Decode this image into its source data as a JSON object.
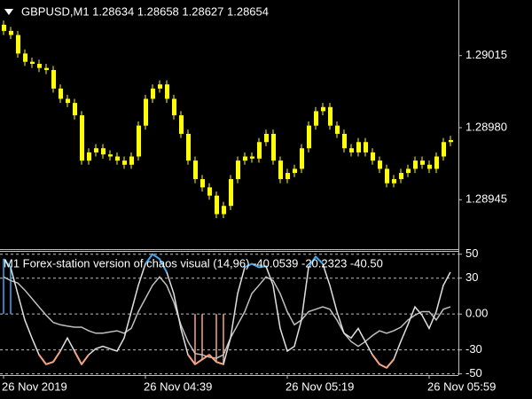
{
  "chart_data": [
    {
      "type": "candlestick",
      "title": "GBPUSD,M1  1.28634 1.28658 1.28627 1.28654",
      "categories": [
        "26 Nov 2019",
        null,
        null,
        null,
        null,
        null,
        null,
        null,
        null,
        null,
        null,
        null,
        null,
        null,
        null,
        null,
        null,
        null,
        null,
        null,
        "26 Nov 04:39",
        null,
        null,
        null,
        null,
        null,
        null,
        null,
        null,
        null,
        null,
        null,
        null,
        null,
        null,
        null,
        null,
        null,
        null,
        null,
        "26 Nov 05:19",
        null,
        null,
        null,
        null,
        null,
        null,
        null,
        null,
        null,
        null,
        null,
        null,
        null,
        null,
        null,
        null,
        null,
        null,
        null,
        "26 Nov 05:59",
        null,
        null,
        null
      ],
      "open": [
        1.2903,
        1.29027,
        1.29025,
        1.29016,
        1.29012,
        1.29011,
        1.29009,
        1.29008,
        1.28999,
        1.28994,
        1.28992,
        1.28986,
        1.28964,
        1.28968,
        1.2897,
        1.28967,
        1.28966,
        1.28964,
        1.28962,
        1.28966,
        1.28981,
        1.28994,
        1.28999,
        1.29001,
        1.28994,
        1.28986,
        1.28977,
        1.28964,
        1.28955,
        1.28951,
        1.28947,
        1.28938,
        1.28942,
        1.28955,
        1.28964,
        1.28966,
        1.28965,
        1.28973,
        1.28977,
        1.28964,
        1.28955,
        1.28958,
        1.2896,
        1.2897,
        1.28981,
        1.28988,
        1.2899,
        1.28981,
        1.28977,
        1.2897,
        1.28968,
        1.28973,
        1.28968,
        1.28964,
        1.2896,
        1.28953,
        1.28955,
        1.28958,
        1.2896,
        1.28964,
        1.28962,
        1.2896,
        1.28966,
        1.28973
      ],
      "high": [
        1.29032,
        1.29029,
        1.29027,
        1.29018,
        1.29014,
        1.29013,
        1.29011,
        1.2901,
        1.29001,
        1.28996,
        1.28994,
        1.28988,
        1.2897,
        1.28972,
        1.28972,
        1.28969,
        1.28968,
        1.28966,
        1.28968,
        1.28983,
        1.28996,
        1.29001,
        1.29003,
        1.29003,
        1.28996,
        1.28988,
        1.28979,
        1.28966,
        1.28957,
        1.28953,
        1.28949,
        1.28944,
        1.28957,
        1.28966,
        1.28968,
        1.28968,
        1.28975,
        1.28979,
        1.28979,
        1.28966,
        1.2896,
        1.28962,
        1.28972,
        1.28983,
        1.2899,
        1.28992,
        1.28992,
        1.28983,
        1.28979,
        1.28972,
        1.28975,
        1.28975,
        1.2897,
        1.28966,
        1.28962,
        1.28957,
        1.2896,
        1.28962,
        1.28966,
        1.28966,
        1.28964,
        1.28968,
        1.28975,
        1.28976
      ],
      "low": [
        1.29025,
        1.29023,
        1.29014,
        1.2901,
        1.29009,
        1.29007,
        1.29006,
        1.28997,
        1.28992,
        1.2899,
        1.28984,
        1.28962,
        1.28962,
        1.28966,
        1.28965,
        1.28964,
        1.28962,
        1.2896,
        1.2896,
        1.28964,
        1.28979,
        1.28992,
        1.28997,
        1.28992,
        1.28984,
        1.28975,
        1.28962,
        1.28953,
        1.28949,
        1.28945,
        1.28936,
        1.28936,
        1.2894,
        1.28953,
        1.28962,
        1.28963,
        1.28963,
        1.28971,
        1.28962,
        1.28953,
        1.28953,
        1.28956,
        1.28958,
        1.28968,
        1.28979,
        1.28986,
        1.28979,
        1.28975,
        1.28968,
        1.28966,
        1.28966,
        1.28966,
        1.28962,
        1.28958,
        1.28951,
        1.28951,
        1.28953,
        1.28956,
        1.28958,
        1.2896,
        1.28958,
        1.28958,
        1.28964,
        1.28971
      ],
      "close": [
        1.29027,
        1.29025,
        1.29016,
        1.29012,
        1.29011,
        1.29009,
        1.29008,
        1.28999,
        1.28994,
        1.28992,
        1.28986,
        1.28964,
        1.28968,
        1.2897,
        1.28967,
        1.28966,
        1.28964,
        1.28962,
        1.28966,
        1.28981,
        1.28994,
        1.28999,
        1.29001,
        1.28994,
        1.28986,
        1.28977,
        1.28964,
        1.28955,
        1.28951,
        1.28947,
        1.28938,
        1.28942,
        1.28955,
        1.28964,
        1.28966,
        1.28965,
        1.28973,
        1.28977,
        1.28964,
        1.28955,
        1.28958,
        1.2896,
        1.2897,
        1.28981,
        1.28988,
        1.2899,
        1.28981,
        1.28977,
        1.2897,
        1.28968,
        1.28973,
        1.28968,
        1.28964,
        1.2896,
        1.28953,
        1.28955,
        1.28958,
        1.2896,
        1.28964,
        1.28962,
        1.2896,
        1.28966,
        1.28973,
        1.28974
      ],
      "color": "#ffff00",
      "ylim": [
        1.28921,
        1.29042
      ],
      "yticks": [
        1.29015,
        {
          "value": 1.2898,
          "label": "1.28980"
        },
        1.28945
      ]
    },
    {
      "type": "line",
      "title": "M1 Forex-station version of chaos visual (14,96) -40.0539 -20.2323 -40.50",
      "series": [
        {
          "color": "#c0c0c0",
          "values": [
            31,
            28,
            26,
            20,
            13,
            6,
            -1,
            -7,
            -9,
            -10,
            -11,
            -11,
            -14,
            -16,
            -16,
            -15,
            -14,
            -16,
            -12,
            2,
            13,
            24,
            31,
            24,
            10,
            -9,
            -23,
            -33,
            -34,
            -36,
            -37,
            -34,
            -20,
            -9,
            2,
            17,
            24,
            31,
            28,
            17,
            2,
            -9,
            -5,
            2,
            4,
            6,
            4,
            -5,
            -16,
            -23,
            -27,
            -23,
            -18,
            -14,
            -16,
            -14,
            -11,
            -5,
            -1,
            2,
            2,
            -5,
            4,
            6
          ]
        },
        {
          "color": "#e0e0e0",
          "values": [
            46,
            39,
            17,
            -5,
            -20,
            -34,
            -42,
            -40,
            -31,
            -20,
            -31,
            -42,
            -34,
            -29,
            -27,
            -29,
            -31,
            -20,
            2,
            24,
            42,
            50,
            46,
            35,
            17,
            -12,
            -34,
            -42,
            -38,
            -34,
            -40,
            -42,
            -20,
            17,
            39,
            42,
            39,
            40,
            24,
            -12,
            -31,
            -27,
            -5,
            39,
            48,
            42,
            24,
            2,
            -16,
            -20,
            -12,
            -23,
            -34,
            -42,
            -45,
            -38,
            -23,
            -9,
            6,
            -1,
            -12,
            2,
            24,
            35
          ]
        }
      ],
      "histogram": [
        46,
        40,
        null,
        null,
        null,
        null,
        null,
        null,
        null,
        null,
        null,
        null,
        null,
        null,
        null,
        null,
        null,
        null,
        null,
        null,
        null,
        null,
        null,
        null,
        null,
        null,
        null,
        -42,
        -38,
        null,
        -40,
        -42,
        null,
        null,
        null,
        null,
        null,
        null,
        null,
        null,
        null,
        null,
        null,
        null,
        null,
        null,
        null,
        null,
        null,
        null,
        null,
        null,
        null,
        null,
        null,
        null,
        null,
        null,
        null,
        null,
        null,
        null,
        null,
        null
      ],
      "color_above": "#3fa9f5",
      "color_below": "#f4a582",
      "ylim": [
        -51,
        52
      ],
      "yticks": [
        50,
        30,
        {
          "value": 0,
          "label": "0.00"
        },
        -30,
        -50
      ],
      "grid": true
    }
  ]
}
